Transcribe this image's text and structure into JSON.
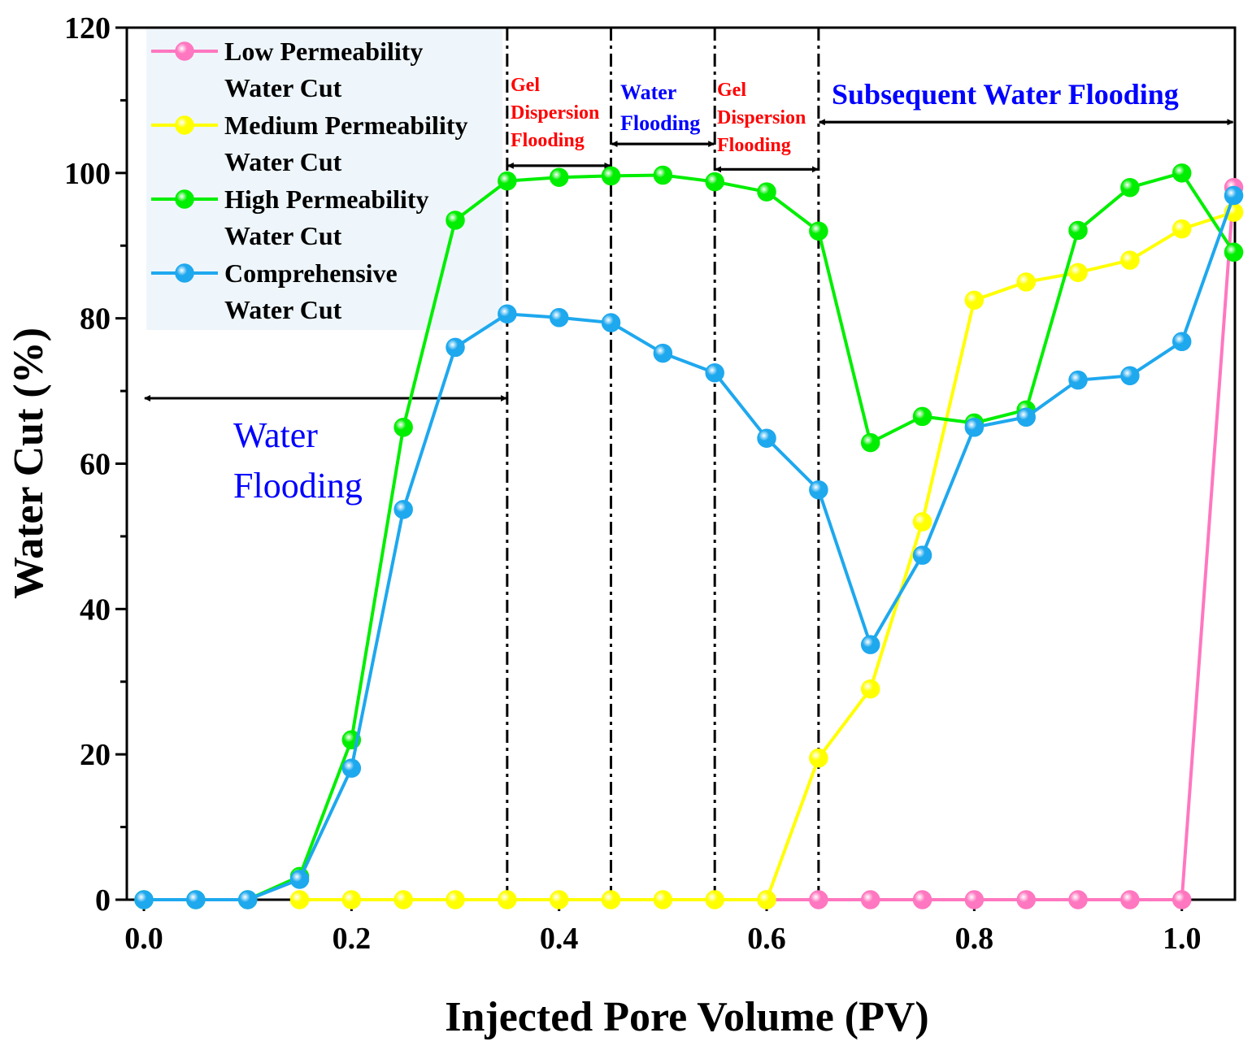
{
  "chart_data": {
    "type": "line",
    "xlabel": "Injected Pore Volume (PV)",
    "ylabel": "Water Cut (%)",
    "xlim": [
      0.0,
      1.05
    ],
    "ylim": [
      0,
      120
    ],
    "xticks": [
      0.0,
      0.2,
      0.4,
      0.6,
      0.8,
      1.0
    ],
    "xtick_labels": [
      "0.0",
      "0.2",
      "0.4",
      "0.6",
      "0.8",
      "1.0"
    ],
    "yticks": [
      0,
      20,
      40,
      60,
      80,
      100,
      120
    ],
    "ytick_labels": [
      "0",
      "20",
      "40",
      "60",
      "80",
      "100",
      "120"
    ],
    "grid": false,
    "legend_position": "top-left",
    "x": [
      0.0,
      0.05,
      0.1,
      0.15,
      0.2,
      0.25,
      0.3,
      0.35,
      0.4,
      0.45,
      0.5,
      0.55,
      0.6,
      0.65,
      0.7,
      0.75,
      0.8,
      0.85,
      0.9,
      0.95,
      1.0,
      1.05
    ],
    "series": [
      {
        "name_lines": [
          "Low Permeability",
          "Water Cut"
        ],
        "color": "#ff77c0",
        "x": [
          0.6,
          0.65,
          0.7,
          0.75,
          0.8,
          0.85,
          0.9,
          0.95,
          1.0,
          1.05
        ],
        "values": [
          0,
          0,
          0,
          0,
          0,
          0,
          0,
          0,
          0,
          98
        ]
      },
      {
        "name_lines": [
          "Medium Permeability",
          "Water Cut"
        ],
        "color": "#ffff00",
        "x": [
          0.15,
          0.2,
          0.25,
          0.3,
          0.35,
          0.4,
          0.45,
          0.5,
          0.55,
          0.6,
          0.65,
          0.7,
          0.75,
          0.8,
          0.85,
          0.9,
          0.95,
          1.0,
          1.05
        ],
        "values": [
          0,
          0,
          0,
          0,
          0,
          0,
          0,
          0,
          0,
          0,
          19.5,
          29,
          52,
          82.5,
          85,
          86.3,
          88,
          92.3,
          94.6
        ]
      },
      {
        "name_lines": [
          "High Permeability",
          "Water Cut"
        ],
        "color": "#00ee00",
        "x": [
          0.0,
          0.05,
          0.1,
          0.15,
          0.2,
          0.25,
          0.3,
          0.35,
          0.4,
          0.45,
          0.5,
          0.55,
          0.6,
          0.65,
          0.7,
          0.75,
          0.8,
          0.85,
          0.9,
          0.95,
          1.0,
          1.05
        ],
        "values": [
          0,
          0,
          0,
          3.2,
          22,
          65,
          93.5,
          98.9,
          99.4,
          99.6,
          99.7,
          98.8,
          97.4,
          92,
          62.9,
          66.5,
          65.6,
          67.4,
          92.1,
          98,
          100,
          89.1
        ]
      },
      {
        "name_lines": [
          "Comprehensive",
          "Water Cut"
        ],
        "color": "#1ea8ee",
        "x": [
          0.0,
          0.05,
          0.1,
          0.15,
          0.2,
          0.25,
          0.3,
          0.35,
          0.4,
          0.45,
          0.5,
          0.55,
          0.6,
          0.65,
          0.7,
          0.75,
          0.8,
          0.85,
          0.9,
          0.95,
          1.0,
          1.05
        ],
        "values": [
          0,
          0,
          0,
          2.8,
          18.1,
          53.7,
          76,
          80.6,
          80.1,
          79.4,
          75.2,
          72.5,
          63.5,
          56.4,
          35.1,
          47.4,
          65,
          66.4,
          71.5,
          72.1,
          76.8,
          96.9
        ]
      }
    ],
    "phase_boundaries_x": [
      0.35,
      0.45,
      0.55,
      0.65
    ],
    "annotations": {
      "water_flooding_1": [
        "Water",
        "Flooding"
      ],
      "gel_1": [
        "Gel",
        "Dispersion",
        "Flooding"
      ],
      "water_flooding_2": [
        "Water",
        "Flooding"
      ],
      "gel_2": [
        "Gel",
        "Dispersion",
        "Flooding"
      ],
      "subsequent": "Subsequent Water Flooding"
    }
  }
}
